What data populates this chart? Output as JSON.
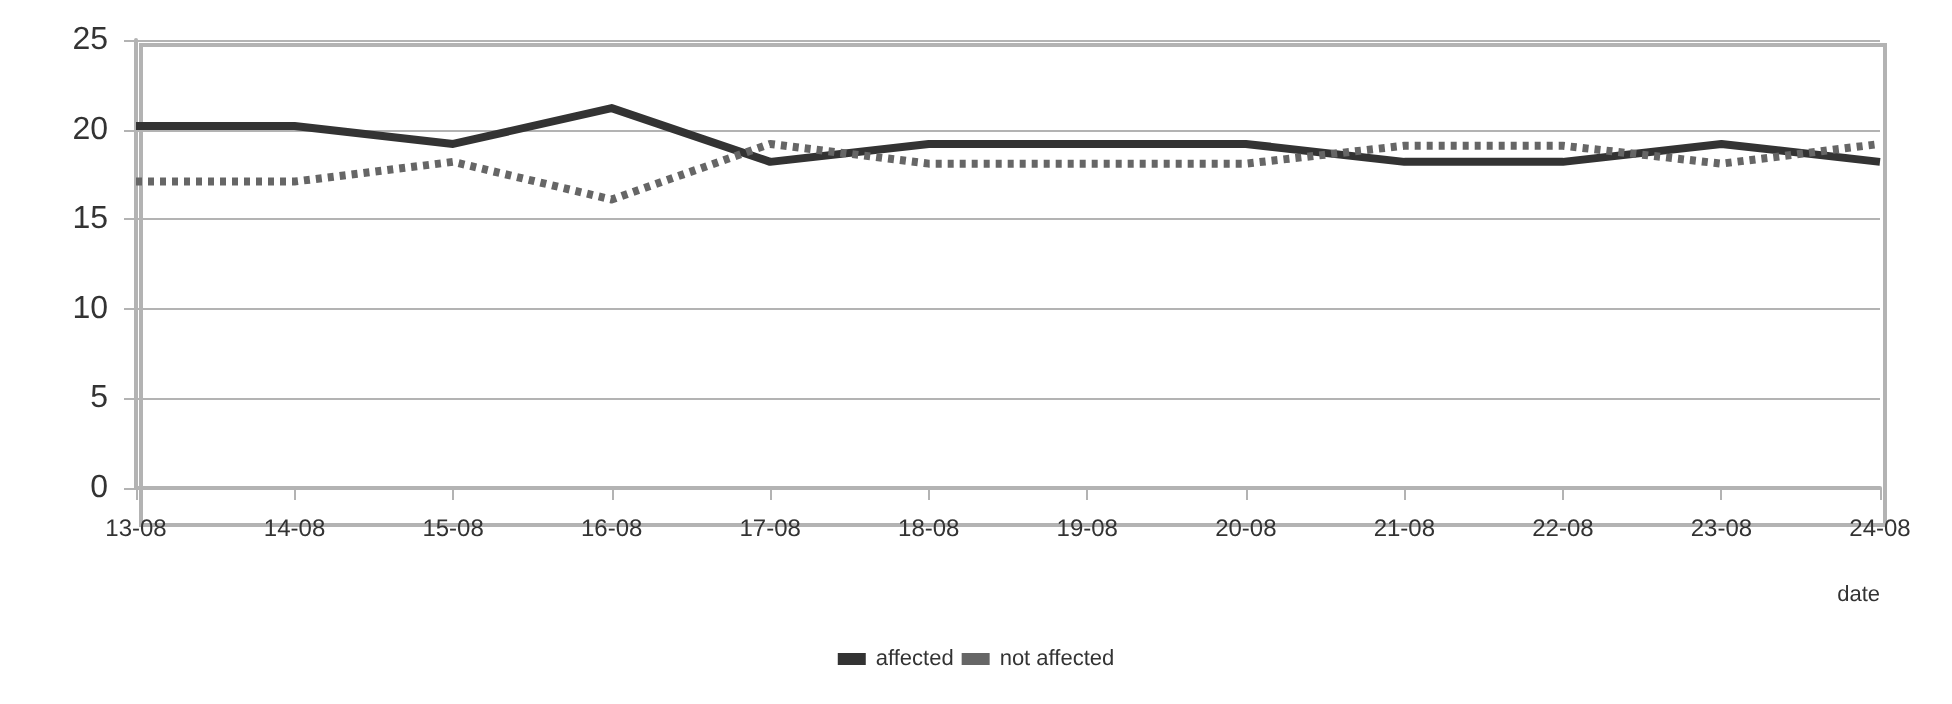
{
  "chart_data": {
    "type": "line",
    "xlabel": "date",
    "categories": [
      "13-08",
      "14-08",
      "15-08",
      "16-08",
      "17-08",
      "18-08",
      "19-08",
      "20-08",
      "21-08",
      "22-08",
      "23-08",
      "24-08"
    ],
    "series": [
      {
        "name": "affected",
        "color": "#333333",
        "line_style": "solid",
        "values": [
          20.2,
          20.2,
          19.2,
          21.2,
          18.2,
          19.2,
          19.2,
          19.2,
          18.2,
          18.2,
          19.2,
          18.2
        ]
      },
      {
        "name": "not affected",
        "color": "#666666",
        "line_style": "dashed",
        "values": [
          17.1,
          17.1,
          18.2,
          16.1,
          19.2,
          18.1,
          18.1,
          18.1,
          19.1,
          19.1,
          18.1,
          19.2
        ]
      }
    ],
    "ylim": [
      0,
      25
    ],
    "yticks": [
      0,
      5,
      10,
      15,
      20,
      25
    ],
    "grid": "y",
    "legend": "bottom",
    "marker": "none"
  }
}
